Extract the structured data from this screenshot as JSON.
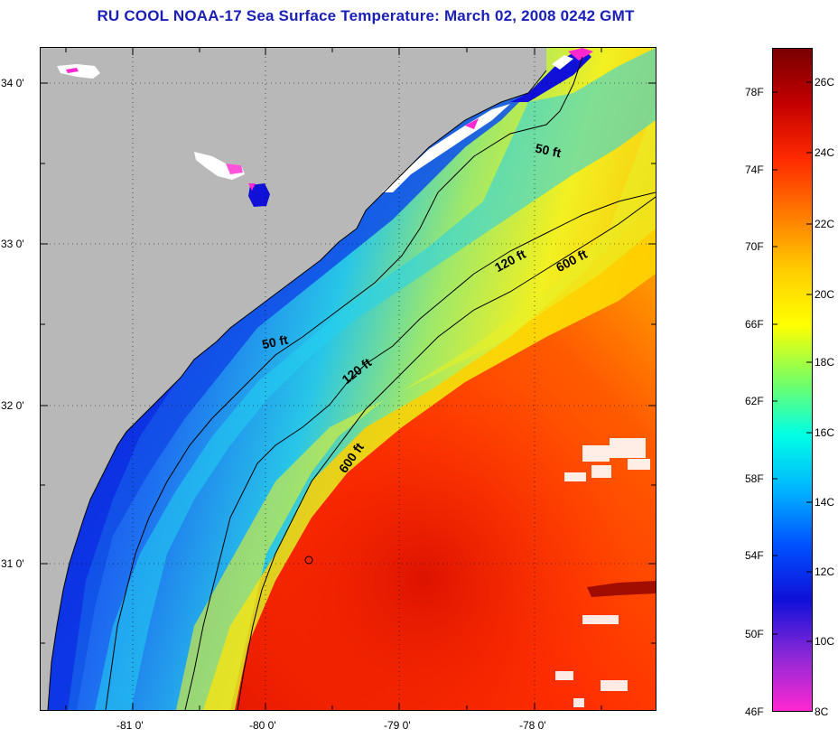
{
  "title": "RU COOL  NOAA-17  Sea Surface Temperature:  March 02, 2008 0242 GMT",
  "map": {
    "lat_labels": [
      "34 0'",
      "33 0'",
      "32 0'",
      "31 0'"
    ],
    "lon_labels": [
      "-81 0'",
      "-80 0'",
      "-79 0'",
      "-78 0'"
    ],
    "contour_labels": {
      "ft50_a": "50 ft",
      "ft50_b": "50 ft",
      "ft120_a": "120 ft",
      "ft120_b": "120 ft",
      "ft600_a": "600 ft",
      "ft600_b": "600 ft"
    },
    "colors": {
      "land": "#b8b8b8",
      "cloud": "#ffffff",
      "contour": "#000000"
    }
  },
  "colorbar": {
    "fahrenheit_labels": [
      "78F",
      "74F",
      "70F",
      "66F",
      "62F",
      "58F",
      "54F",
      "50F",
      "46F"
    ],
    "celsius_labels": [
      "26C",
      "24C",
      "22C",
      "20C",
      "18C",
      "16C",
      "14C",
      "12C",
      "10C",
      "8C"
    ],
    "gradient_stops": [
      "#7a0000",
      "#c40000",
      "#ff2a00",
      "#ff7a00",
      "#ffcc00",
      "#ffff00",
      "#7aff60",
      "#00ffe6",
      "#00b4ff",
      "#0050ff",
      "#1010d8",
      "#8c28d8",
      "#ff28d0"
    ]
  }
}
